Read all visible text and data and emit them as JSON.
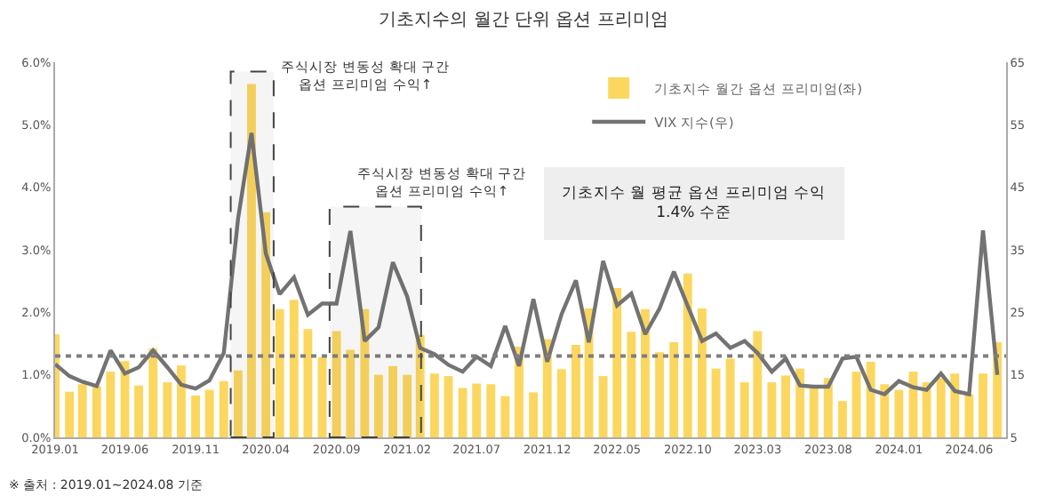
{
  "chart_data": {
    "type": "bar",
    "title": "기초지수의 월간 단위 옵션 프리미엄",
    "x": [
      "2019-01",
      "2019-02",
      "2019-03",
      "2019-04",
      "2019-05",
      "2019-06",
      "2019-07",
      "2019-08",
      "2019-09",
      "2019-10",
      "2019-11",
      "2019-12",
      "2020-01",
      "2020-02",
      "2020-03",
      "2020-04",
      "2020-05",
      "2020-06",
      "2020-07",
      "2020-08",
      "2020-09",
      "2020-10",
      "2020-11",
      "2020-12",
      "2021-01",
      "2021-02",
      "2021-03",
      "2021-04",
      "2021-05",
      "2021-06",
      "2021-07",
      "2021-08",
      "2021-09",
      "2021-10",
      "2021-11",
      "2021-12",
      "2022-01",
      "2022-02",
      "2022-03",
      "2022-04",
      "2022-05",
      "2022-06",
      "2022-07",
      "2022-08",
      "2022-09",
      "2022-10",
      "2022-11",
      "2022-12",
      "2023-01",
      "2023-02",
      "2023-03",
      "2023-04",
      "2023-05",
      "2023-06",
      "2023-07",
      "2023-08",
      "2023-09",
      "2023-10",
      "2023-11",
      "2023-12",
      "2024-01",
      "2024-02",
      "2024-03",
      "2024-04",
      "2024-05",
      "2024-06",
      "2024-07",
      "2024-08"
    ],
    "series": [
      {
        "name": "기초지수 월간 옵션 프리미엄(좌)",
        "color": "#fcd75f",
        "values": [
          1.65,
          0.73,
          0.85,
          0.82,
          1.05,
          1.22,
          0.83,
          1.42,
          0.88,
          1.15,
          0.67,
          0.76,
          0.9,
          1.07,
          5.65,
          3.6,
          2.05,
          2.2,
          1.73,
          1.28,
          1.7,
          1.4,
          2.05,
          1.0,
          1.14,
          1.0,
          1.64,
          1.02,
          0.98,
          0.79,
          0.86,
          0.85,
          0.66,
          1.45,
          0.72,
          1.57,
          1.09,
          1.48,
          2.06,
          0.98,
          2.39,
          1.69,
          2.05,
          1.36,
          1.52,
          2.62,
          2.06,
          1.1,
          1.26,
          0.88,
          1.7,
          0.88,
          0.99,
          1.1,
          0.79,
          0.95,
          0.58,
          1.05,
          1.21,
          0.85,
          0.76,
          1.05,
          0.88,
          0.95,
          1.02,
          0.69,
          1.02,
          1.52
        ]
      },
      {
        "name": "VIX 지수(우)",
        "type": "line",
        "axis": "y2",
        "color": "#737373",
        "values": [
          16.7,
          14.8,
          13.9,
          13.2,
          18.9,
          15.2,
          16.2,
          18.9,
          16.2,
          13.4,
          12.8,
          14.1,
          18.5,
          40,
          53.7,
          34.4,
          27.9,
          30.6,
          24.6,
          26.4,
          26.4,
          38,
          20.4,
          22.6,
          33,
          27.5,
          19.3,
          18.3,
          16.6,
          15.5,
          17.9,
          16.4,
          22.8,
          16.4,
          27.1,
          17.1,
          24.7,
          30.1,
          20.2,
          33.2,
          26.1,
          28,
          21.5,
          25.6,
          31.5,
          26,
          20.4,
          21.6,
          19.3,
          20.4,
          18.5,
          15.5,
          17.6,
          13.3,
          13.1,
          13.1,
          17.6,
          17.9,
          12.6,
          11.9,
          14,
          13,
          12.6,
          15.2,
          12.4,
          11.9,
          38.1,
          15
        ]
      }
    ],
    "xlim": [
      "2019-01-01",
      "2024-08-20"
    ],
    "xticks": [
      {
        "value": "2019-01",
        "label": "2019.01"
      },
      {
        "value": "2019-06",
        "label": "2019.06"
      },
      {
        "value": "2019-11",
        "label": "2019.11"
      },
      {
        "value": "2020-04",
        "label": "2020.04"
      },
      {
        "value": "2020-09",
        "label": "2020.09"
      },
      {
        "value": "2021-02",
        "label": "2021.02"
      },
      {
        "value": "2021-07",
        "label": "2021.07"
      },
      {
        "value": "2021-12",
        "label": "2021.12"
      },
      {
        "value": "2022-05",
        "label": "2022.05"
      },
      {
        "value": "2022-10",
        "label": "2022.10"
      },
      {
        "value": "2023-03",
        "label": "2023.03"
      },
      {
        "value": "2023-08",
        "label": "2023.08"
      },
      {
        "value": "2024-01",
        "label": "2024.01"
      },
      {
        "value": "2024-06",
        "label": "2024.06"
      }
    ],
    "ylim": [
      0,
      6
    ],
    "yticks": [
      {
        "value": 0,
        "label": "0.0%"
      },
      {
        "value": 1,
        "label": "1.0%"
      },
      {
        "value": 2,
        "label": "2.0%"
      },
      {
        "value": 3,
        "label": "3.0%"
      },
      {
        "value": 4,
        "label": "4.0%"
      },
      {
        "value": 5,
        "label": "5.0%"
      },
      {
        "value": 6,
        "label": "6.0%"
      }
    ],
    "y2lim": [
      5,
      65
    ],
    "y2ticks": [
      5,
      15,
      25,
      35,
      45,
      55,
      65
    ],
    "ref_lines": [
      {
        "axis": "y",
        "value": 1.3,
        "color": "#7f7f7f",
        "line_style": "dotted"
      }
    ],
    "bands": [
      {
        "axis": "x",
        "from": "2020-01-16",
        "to": "2020-04-18",
        "color": "#444444",
        "label": "주식시장 변동성 확대 구간\n옵션 프리미엄 수익↑"
      },
      {
        "axis": "x",
        "from": "2020-08-17",
        "to": "2021-03-03",
        "color": "#444444",
        "label": "주식시장 변동성 확대 구간\n옵션 프리미엄 수익↑"
      }
    ],
    "annotations": [
      "기초지수 월 평균 옵션 프리미엄 수익\n1.4% 수준",
      "※ 출처 : 2019.01~2024.08 기준"
    ],
    "legend": "top right"
  }
}
